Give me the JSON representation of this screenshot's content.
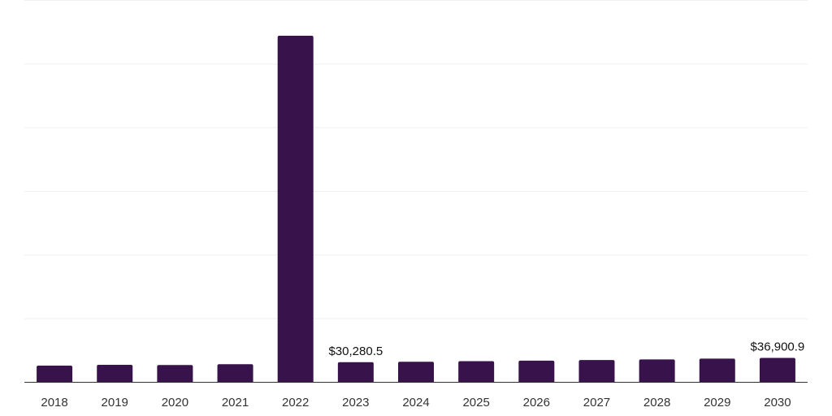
{
  "chart_data": {
    "type": "bar",
    "categories": [
      "2018",
      "2019",
      "2020",
      "2021",
      "2022",
      "2023",
      "2024",
      "2025",
      "2026",
      "2027",
      "2028",
      "2029",
      "2030"
    ],
    "values": [
      25000,
      26200,
      25900,
      27200,
      532000,
      30280.5,
      30900,
      31800,
      32700,
      33600,
      34500,
      35700,
      36900.9
    ],
    "data_labels": [
      {
        "index": 5,
        "text": "$30,280.5"
      },
      {
        "index": 12,
        "text": "$36,900.9"
      }
    ],
    "ylim": [
      0,
      587000
    ],
    "grid": true,
    "bar_color": "#38124a"
  }
}
